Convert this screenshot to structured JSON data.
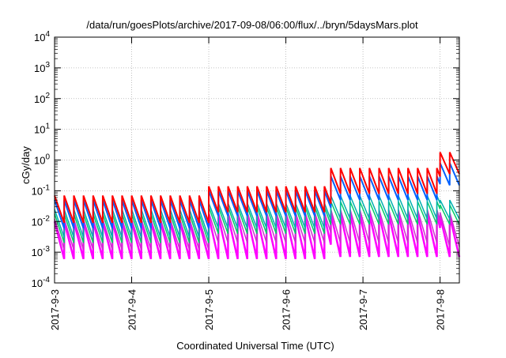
{
  "chart_data": {
    "type": "line",
    "title": "/data/run/goesPlots/archive/2017-09-08/06:00/flux/../bryn/5daysMars.plot",
    "xlabel": "Coordinated Universal Time (UTC)",
    "ylabel": "cGy/day",
    "x_tick_labels": [
      "2017-9-3",
      "2017-9-4",
      "2017-9-5",
      "2017-9-6",
      "2017-9-7",
      "2017-9-8"
    ],
    "x_tick_dates": [
      "2017-09-03T00:00",
      "2017-09-04T00:00",
      "2017-09-05T00:00",
      "2017-09-06T00:00",
      "2017-09-07T00:00",
      "2017-09-08T00:00"
    ],
    "xlim": [
      "2017-09-03T00:00",
      "2017-09-08T06:00"
    ],
    "y_scale": "log",
    "y_tick_labels": [
      {
        "base": "10",
        "exp": "-4"
      },
      {
        "base": "10",
        "exp": "-3"
      },
      {
        "base": "10",
        "exp": "-2"
      },
      {
        "base": "10",
        "exp": "-1"
      },
      {
        "base": "10",
        "exp": "0"
      },
      {
        "base": "10",
        "exp": "1"
      },
      {
        "base": "10",
        "exp": "2"
      },
      {
        "base": "10",
        "exp": "3"
      },
      {
        "base": "10",
        "exp": "4"
      }
    ],
    "ylim": [
      0.0001,
      10000
    ],
    "grid": true,
    "sawtooth_period_hours": 3,
    "series": [
      {
        "color": "#ff0000",
        "width": 2,
        "segments": [
          {
            "start": "2017-09-03T00:00",
            "end": "2017-09-05T00:00",
            "high": 0.07,
            "low": 0.009
          },
          {
            "start": "2017-09-05T00:00",
            "end": "2017-09-06T14:00",
            "high": 0.14,
            "low": 0.02
          },
          {
            "start": "2017-09-06T14:00",
            "end": "2017-09-08T00:00",
            "high": 0.55,
            "low": 0.08
          },
          {
            "start": "2017-09-08T00:00",
            "end": "2017-09-08T06:00",
            "high": 1.8,
            "low": 0.35
          }
        ]
      },
      {
        "color": "#0060ff",
        "width": 2,
        "segments": [
          {
            "start": "2017-09-03T00:00",
            "end": "2017-09-05T00:00",
            "high": 0.05,
            "low": 0.006
          },
          {
            "start": "2017-09-05T00:00",
            "end": "2017-09-06T14:00",
            "high": 0.1,
            "low": 0.015
          },
          {
            "start": "2017-09-06T14:00",
            "end": "2017-09-08T00:00",
            "high": 0.3,
            "low": 0.05
          },
          {
            "start": "2017-09-08T00:00",
            "end": "2017-09-08T06:00",
            "high": 0.8,
            "low": 0.15
          }
        ]
      },
      {
        "color": "#00b0b0",
        "width": 1.5,
        "segments": [
          {
            "start": "2017-09-03T00:00",
            "end": "2017-09-05T00:00",
            "high": 0.025,
            "low": 0.003
          },
          {
            "start": "2017-09-05T00:00",
            "end": "2017-09-06T14:00",
            "high": 0.04,
            "low": 0.006
          },
          {
            "start": "2017-09-06T14:00",
            "end": "2017-09-08T00:00",
            "high": 0.07,
            "low": 0.012
          },
          {
            "start": "2017-09-08T00:00",
            "end": "2017-09-08T06:00",
            "high": 0.05,
            "low": 0.012
          }
        ]
      },
      {
        "color": "#00cc66",
        "width": 1.5,
        "segments": [
          {
            "start": "2017-09-03T00:00",
            "end": "2017-09-05T00:00",
            "high": 0.018,
            "low": 0.002
          },
          {
            "start": "2017-09-05T00:00",
            "end": "2017-09-06T14:00",
            "high": 0.03,
            "low": 0.004
          },
          {
            "start": "2017-09-06T14:00",
            "end": "2017-09-08T00:00",
            "high": 0.045,
            "low": 0.008
          },
          {
            "start": "2017-09-08T00:00",
            "end": "2017-09-08T06:00",
            "high": 0.035,
            "low": 0.008
          }
        ]
      },
      {
        "color": "#cc33cc",
        "width": 1.5,
        "segments": [
          {
            "start": "2017-09-03T00:00",
            "end": "2017-09-05T00:00",
            "high": 0.012,
            "low": 0.0012
          },
          {
            "start": "2017-09-05T00:00",
            "end": "2017-09-06T14:00",
            "high": 0.02,
            "low": 0.002
          },
          {
            "start": "2017-09-06T14:00",
            "end": "2017-09-08T00:00",
            "high": 0.025,
            "low": 0.002
          },
          {
            "start": "2017-09-08T00:00",
            "end": "2017-09-08T06:00",
            "high": 0.02,
            "low": 0.0015
          }
        ]
      },
      {
        "color": "#ff00ff",
        "width": 2.5,
        "segments": [
          {
            "start": "2017-09-03T00:00",
            "end": "2017-09-05T00:00",
            "high": 0.01,
            "low": 0.0006
          },
          {
            "start": "2017-09-05T00:00",
            "end": "2017-09-06T14:00",
            "high": 0.015,
            "low": 0.0006
          },
          {
            "start": "2017-09-06T14:00",
            "end": "2017-09-08T00:00",
            "high": 0.018,
            "low": 0.0007
          },
          {
            "start": "2017-09-08T00:00",
            "end": "2017-09-08T06:00",
            "high": 0.015,
            "low": 0.0007
          }
        ]
      }
    ]
  }
}
